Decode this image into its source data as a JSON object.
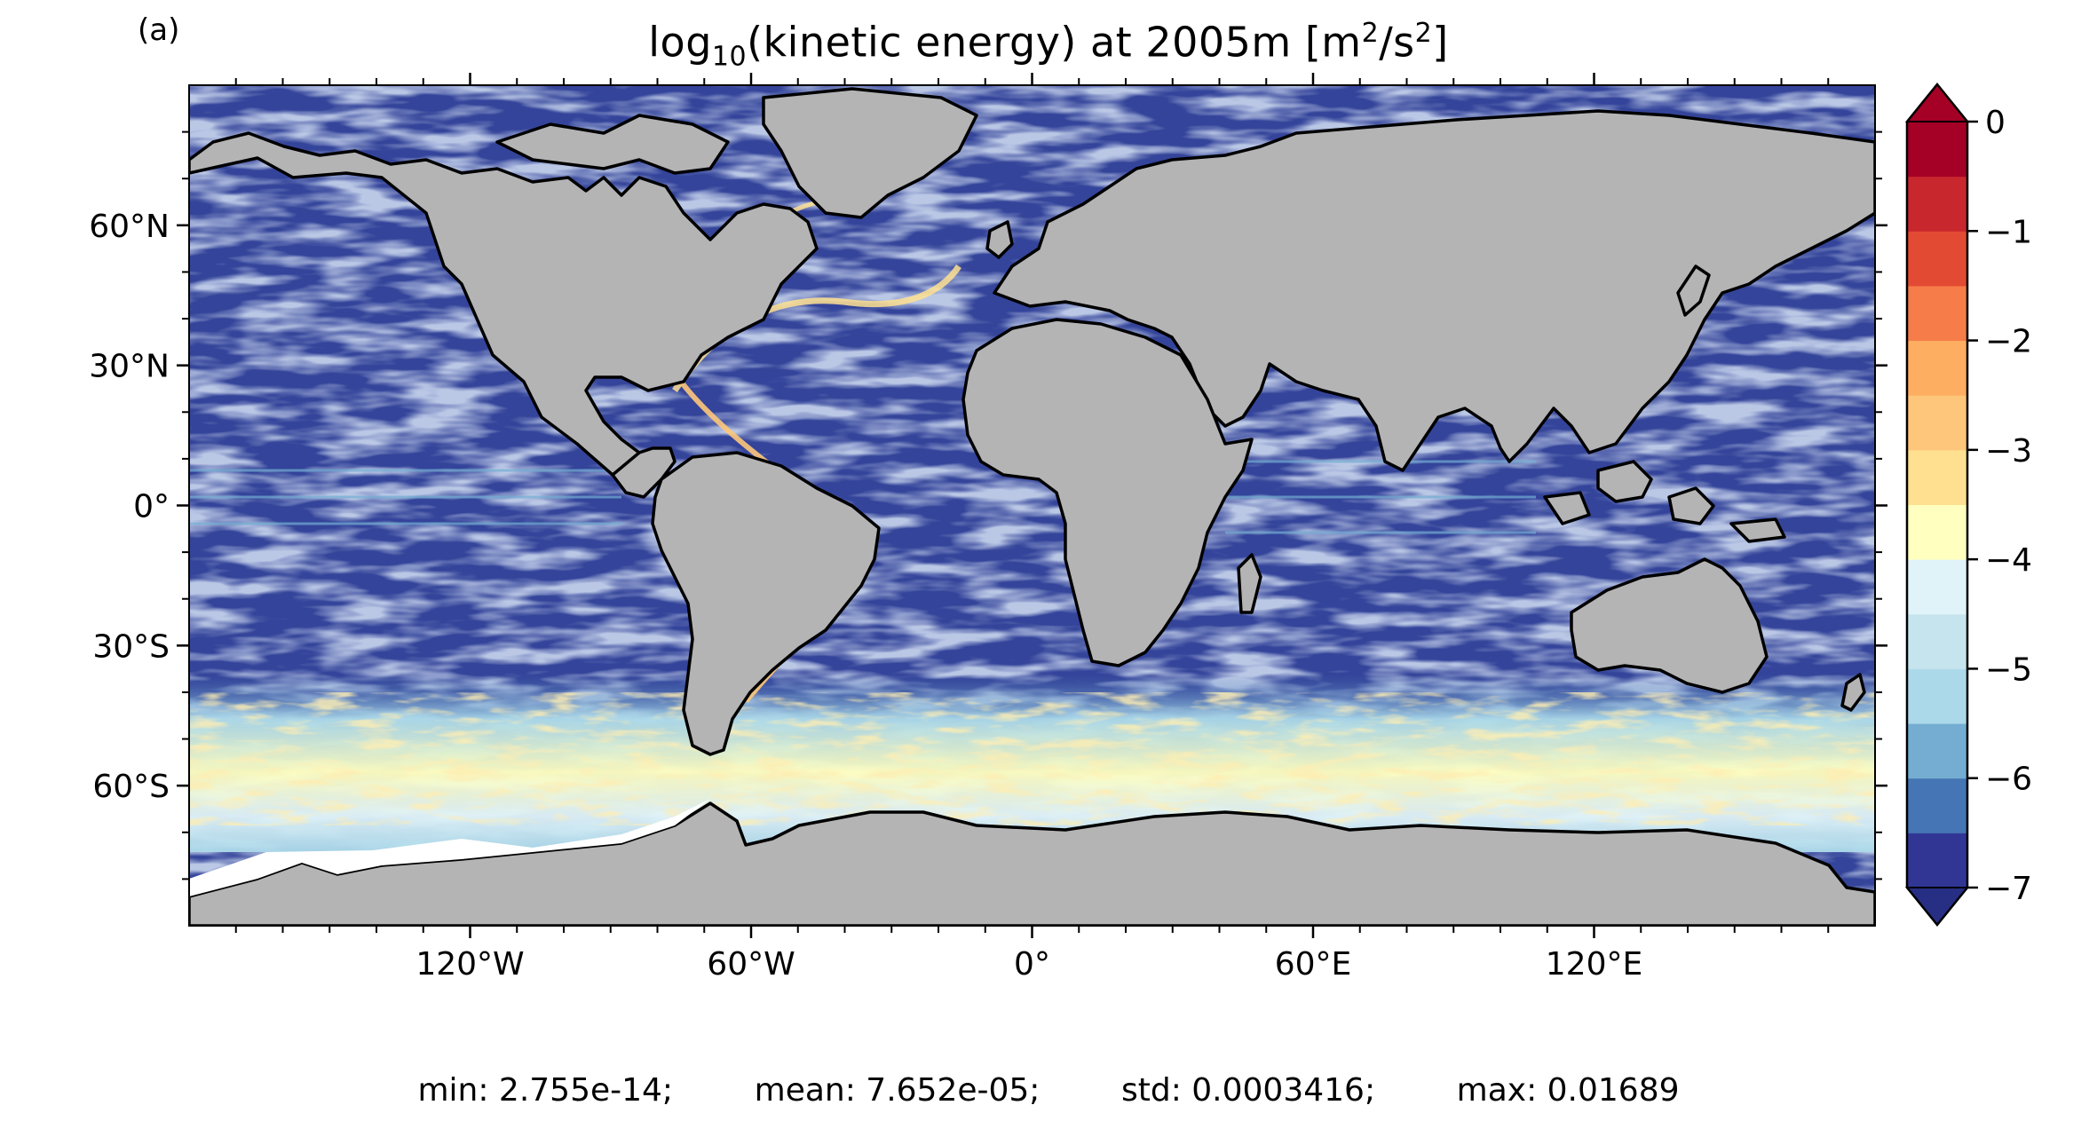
{
  "panel_label": "(a)",
  "title": {
    "prefix": "log",
    "subscript": "10",
    "middle": "(kinetic energy) at 2005m [m",
    "sup1": "2",
    "slash": "/s",
    "sup2": "2",
    "suffix": "]"
  },
  "axes": {
    "lat_ticks": [
      {
        "lat": 60,
        "label": "60°N"
      },
      {
        "lat": 30,
        "label": "30°N"
      },
      {
        "lat": 0,
        "label": "0°"
      },
      {
        "lat": -30,
        "label": "30°S"
      },
      {
        "lat": -60,
        "label": "60°S"
      }
    ],
    "lon_ticks": [
      {
        "lon": -120,
        "label": "120°W"
      },
      {
        "lon": -60,
        "label": "60°W"
      },
      {
        "lon": 0,
        "label": "0°"
      },
      {
        "lon": 60,
        "label": "60°E"
      },
      {
        "lon": 120,
        "label": "120°E"
      }
    ],
    "lon_range": [
      -180,
      180
    ],
    "lat_range": [
      -90,
      90
    ]
  },
  "colorbar": {
    "range": [
      -7,
      0
    ],
    "extend": "both",
    "tick_labels": [
      {
        "value": 0,
        "label": "0"
      },
      {
        "value": -1,
        "label": "−1"
      },
      {
        "value": -2,
        "label": "−2"
      },
      {
        "value": -3,
        "label": "−3"
      },
      {
        "value": -4,
        "label": "−4"
      },
      {
        "value": -5,
        "label": "−5"
      },
      {
        "value": -6,
        "label": "−6"
      },
      {
        "value": -7,
        "label": "−7"
      }
    ],
    "colors": [
      "#313695",
      "#4575b4",
      "#74add1",
      "#abd9e9",
      "#c6e4ee",
      "#e0f3f8",
      "#ffffbf",
      "#fee090",
      "#fdc67a",
      "#fdae61",
      "#f67c4a",
      "#e34a33",
      "#c8272e",
      "#a50026"
    ],
    "under_color": "#262f83",
    "over_color": "#a50026"
  },
  "colors": {
    "land": "#b4b4b4",
    "ice_shelf": "#ffffff",
    "coast": "#000000"
  },
  "stats": {
    "min": "min: 2.755e-14;",
    "mean": "mean: 7.652e-05;",
    "std": "std: 0.0003416;",
    "max": "max: 0.01689"
  }
}
